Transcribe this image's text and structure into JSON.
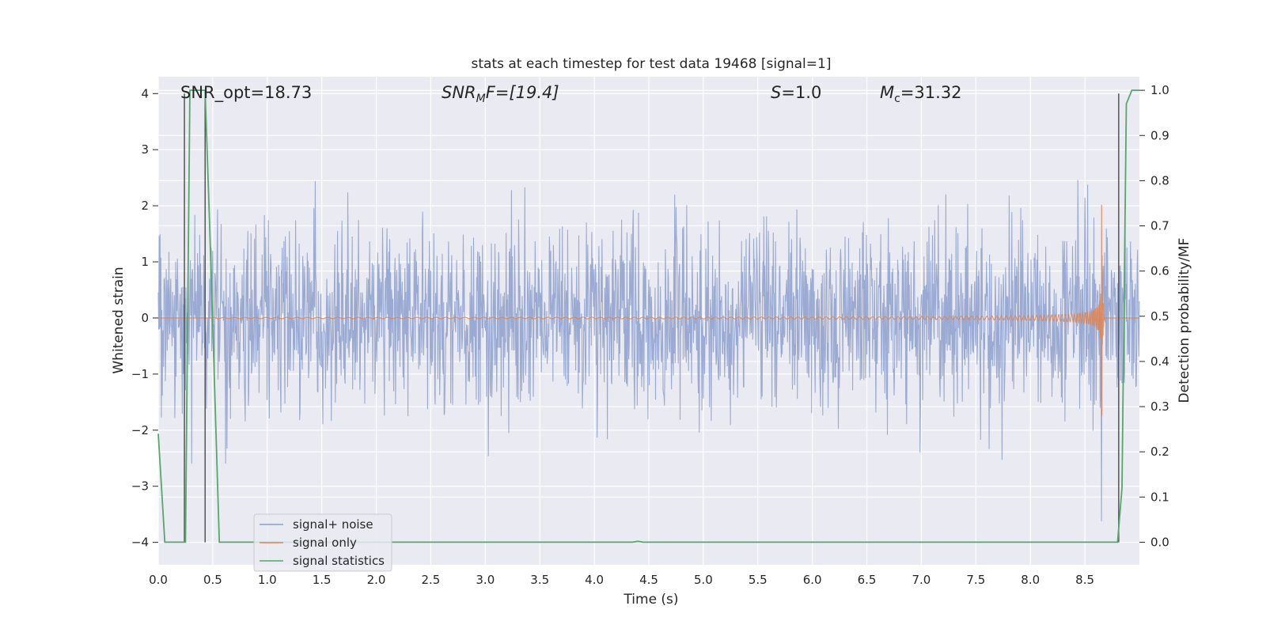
{
  "chart_data": {
    "type": "line",
    "title": "stats at each timestep for test data 19468 [signal=1]",
    "xlabel": "Time (s)",
    "ylabel": "Whitened strain",
    "ylabel_right": "Detection probability/MF",
    "xlim": [
      0,
      9.0
    ],
    "ylim": [
      -4.4,
      4.3
    ],
    "ylim_right": [
      -0.05,
      1.03
    ],
    "x_ticks": [
      0.0,
      0.5,
      1.0,
      1.5,
      2.0,
      2.5,
      3.0,
      3.5,
      4.0,
      4.5,
      5.0,
      5.5,
      6.0,
      6.5,
      7.0,
      7.5,
      8.0,
      8.5
    ],
    "x_tick_labels": [
      "0.0",
      "0.5",
      "1.0",
      "1.5",
      "2.0",
      "2.5",
      "3.0",
      "3.5",
      "4.0",
      "4.5",
      "5.0",
      "5.5",
      "6.0",
      "6.5",
      "7.0",
      "7.5",
      "8.0",
      "8.5"
    ],
    "y_ticks": [
      -4,
      -3,
      -2,
      -1,
      0,
      1,
      2,
      3,
      4
    ],
    "y_tick_labels": [
      "−4",
      "−3",
      "−2",
      "−1",
      "0",
      "1",
      "2",
      "3",
      "4"
    ],
    "y_ticks_right": [
      0.0,
      0.1,
      0.2,
      0.3,
      0.4,
      0.5,
      0.6,
      0.7,
      0.8,
      0.9,
      1.0
    ],
    "y_tick_labels_right": [
      "0.0",
      "0.1",
      "0.2",
      "0.3",
      "0.4",
      "0.5",
      "0.6",
      "0.7",
      "0.8",
      "0.9",
      "1.0"
    ],
    "grid": true,
    "legend_position": "bottom-left",
    "annotations": {
      "snr_opt": "SNR_opt=18.73",
      "snr_mf_base": "SNR",
      "snr_mf_sub": "M",
      "snr_mf_rest": "F=[19.4]",
      "s_var": "S",
      "s_rest": "=1.0",
      "mc_base": "M",
      "mc_sub": "c",
      "mc_rest": "=31.32"
    },
    "series": [
      {
        "name": "signal+ noise",
        "color": "#8c9fcc",
        "axis": "left",
        "kind": "noise",
        "amplitude_sigma": 0.8,
        "peak_range": [
          -2.6,
          2.9
        ]
      },
      {
        "name": "signal only",
        "color": "#dd8452",
        "axis": "left",
        "kind": "chirp",
        "merger_time": 8.65,
        "peak_amplitude": 3.9
      },
      {
        "name": "signal statistics",
        "color": "#55a868",
        "axis": "right",
        "x": [
          0.0,
          0.06,
          0.25,
          0.29,
          0.43,
          0.47,
          0.56,
          4.35,
          4.4,
          4.45,
          7.5,
          8.8,
          8.84,
          8.88,
          8.93,
          9.0
        ],
        "y": [
          0.24,
          0.0,
          0.0,
          1.0,
          1.0,
          0.71,
          0.0,
          0.0,
          0.002,
          0.0,
          0.0,
          0.0,
          0.12,
          0.97,
          1.0,
          1.0
        ]
      }
    ],
    "vertical_lines": {
      "color": "#555555",
      "x": [
        0.24,
        0.43,
        8.81
      ],
      "y_from": -4,
      "y_to": 4
    }
  }
}
